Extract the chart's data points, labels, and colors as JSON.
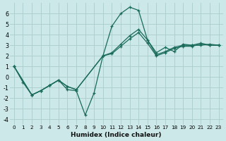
{
  "xlabel": "Humidex (Indice chaleur)",
  "background_color": "#cce8e8",
  "grid_color": "#aacccc",
  "line_color": "#1a6b5a",
  "xlim": [
    -0.5,
    23.5
  ],
  "ylim": [
    -4.5,
    7.0
  ],
  "xticks": [
    0,
    1,
    2,
    3,
    4,
    5,
    6,
    7,
    8,
    9,
    10,
    11,
    12,
    13,
    14,
    15,
    16,
    17,
    18,
    19,
    20,
    21,
    22,
    23
  ],
  "yticks": [
    -4,
    -3,
    -2,
    -1,
    0,
    1,
    2,
    3,
    4,
    5,
    6
  ],
  "line1_x": [
    0,
    1,
    2,
    3,
    4,
    5,
    6,
    7,
    8,
    9,
    10,
    11,
    12,
    13,
    14,
    15,
    16,
    17,
    18,
    19,
    20,
    21,
    22,
    23
  ],
  "line1_y": [
    1.0,
    -0.5,
    -1.7,
    -1.3,
    -0.8,
    -0.3,
    -1.2,
    -1.3,
    -3.6,
    -1.5,
    2.0,
    4.8,
    6.0,
    6.6,
    6.3,
    3.5,
    2.3,
    2.8,
    2.4,
    3.1,
    3.0,
    3.0,
    3.1,
    3.0
  ],
  "line2_x": [
    0,
    2,
    3,
    4,
    5,
    6,
    7,
    10,
    11,
    12,
    13,
    14,
    15,
    16,
    17,
    18,
    19,
    20,
    21,
    22,
    23
  ],
  "line2_y": [
    1.0,
    -1.7,
    -1.3,
    -0.8,
    -0.3,
    -0.9,
    -1.2,
    2.0,
    2.3,
    3.1,
    3.9,
    4.5,
    3.5,
    2.1,
    2.4,
    2.8,
    3.0,
    3.0,
    3.2,
    3.0,
    3.0
  ],
  "line3_x": [
    0,
    2,
    3,
    4,
    5,
    6,
    7,
    10,
    11,
    12,
    13,
    14,
    15,
    16,
    17,
    18,
    19,
    20,
    21,
    22,
    23
  ],
  "line3_y": [
    1.0,
    -1.7,
    -1.3,
    -0.8,
    -0.3,
    -0.9,
    -1.2,
    2.0,
    2.2,
    2.9,
    3.6,
    4.2,
    3.2,
    2.0,
    2.3,
    2.7,
    2.9,
    2.9,
    3.1,
    3.0,
    3.0
  ]
}
